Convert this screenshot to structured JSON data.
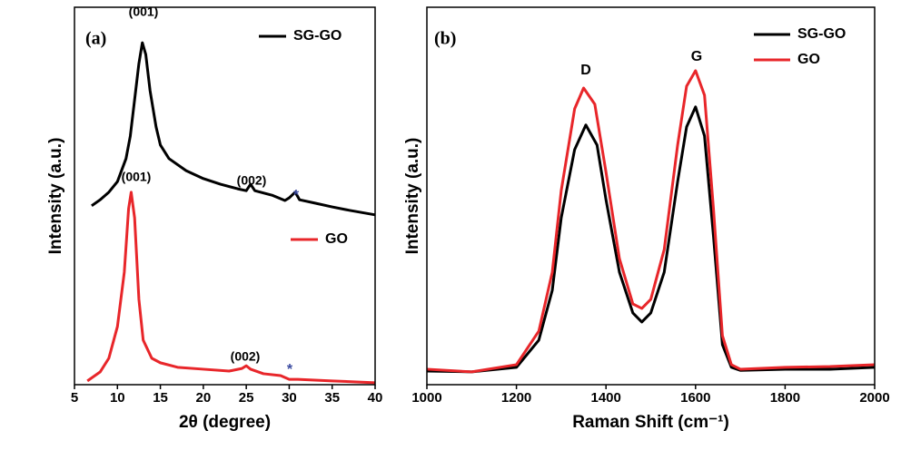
{
  "chart_data": [
    {
      "type": "line",
      "panel_label": "(a)",
      "xlabel": "2θ (degree)",
      "ylabel": "Intensity (a.u.)",
      "xlim": [
        5,
        40
      ],
      "xticks": [
        5,
        10,
        15,
        20,
        25,
        30,
        35,
        40
      ],
      "ylim": [
        0,
        100
      ],
      "annotations": [
        "(001)",
        "(001)",
        "(002)",
        "(002)",
        "*",
        "*"
      ],
      "series": [
        {
          "name": "SG-GO",
          "color": "#000000",
          "x": [
            7,
            8,
            9,
            10,
            11,
            11.5,
            12,
            12.5,
            12.9,
            13.3,
            13.8,
            14.5,
            15,
            16,
            18,
            20,
            22,
            24,
            25,
            25.5,
            26,
            28,
            29.5,
            30,
            30.7,
            31.2,
            33,
            35,
            37,
            40
          ],
          "values": [
            47.4,
            49.0,
            51.0,
            53.8,
            59.9,
            65.9,
            75.5,
            85.1,
            90.6,
            87.5,
            77.9,
            68.3,
            63.5,
            59.9,
            56.7,
            54.6,
            53.1,
            51.9,
            51.4,
            53.1,
            51.4,
            50.2,
            48.8,
            49.5,
            51.0,
            49.0,
            48.1,
            47.1,
            46.2,
            45.0
          ]
        },
        {
          "name": "GO",
          "color": "#e8262a",
          "x": [
            6.5,
            8,
            9,
            10,
            10.8,
            11.3,
            11.6,
            12,
            12.5,
            13,
            14,
            15,
            17,
            20,
            23,
            24.5,
            25,
            25.5,
            27,
            29,
            30,
            31,
            35,
            40
          ],
          "values": [
            1.0,
            3.4,
            7.0,
            15.4,
            29.8,
            46.6,
            51.0,
            44.2,
            22.6,
            11.8,
            7.0,
            5.8,
            4.6,
            4.1,
            3.6,
            4.3,
            5.0,
            4.1,
            2.9,
            2.4,
            1.4,
            1.4,
            1.0,
            0.5
          ]
        }
      ]
    },
    {
      "type": "line",
      "panel_label": "(b)",
      "xlabel": "Raman Shift (cm⁻¹)",
      "ylabel": "Intensity (a.u.)",
      "xlim": [
        1000,
        2000
      ],
      "xticks": [
        1000,
        1200,
        1400,
        1600,
        1800,
        2000
      ],
      "ylim": [
        0,
        100
      ],
      "annotations": [
        "D",
        "G"
      ],
      "series": [
        {
          "name": "SG-GO",
          "color": "#000000",
          "x": [
            1000,
            1100,
            1200,
            1250,
            1280,
            1300,
            1330,
            1355,
            1380,
            1400,
            1430,
            1460,
            1480,
            1500,
            1530,
            1560,
            1580,
            1600,
            1620,
            1640,
            1660,
            1680,
            1700,
            1800,
            1900,
            2000
          ],
          "values": [
            3.6,
            3.4,
            4.6,
            11.8,
            25.0,
            44.2,
            62.3,
            68.8,
            63.5,
            49.0,
            29.8,
            19.0,
            16.6,
            19.0,
            29.8,
            53.8,
            68.3,
            73.6,
            65.9,
            39.4,
            10.6,
            4.6,
            3.8,
            4.1,
            4.1,
            4.6
          ]
        },
        {
          "name": "GO",
          "color": "#e8262a",
          "x": [
            1000,
            1100,
            1200,
            1250,
            1280,
            1300,
            1330,
            1350,
            1375,
            1400,
            1430,
            1460,
            1480,
            1500,
            1530,
            1560,
            1580,
            1600,
            1620,
            1640,
            1660,
            1680,
            1700,
            1800,
            1900,
            2000
          ],
          "values": [
            4.1,
            3.4,
            5.3,
            14.2,
            29.8,
            51.4,
            73.1,
            78.6,
            74.3,
            56.3,
            33.4,
            21.4,
            20.2,
            22.6,
            35.8,
            63.5,
            79.1,
            83.2,
            76.7,
            46.6,
            13.0,
            5.3,
            4.1,
            4.6,
            4.8,
            5.3
          ]
        }
      ]
    }
  ]
}
